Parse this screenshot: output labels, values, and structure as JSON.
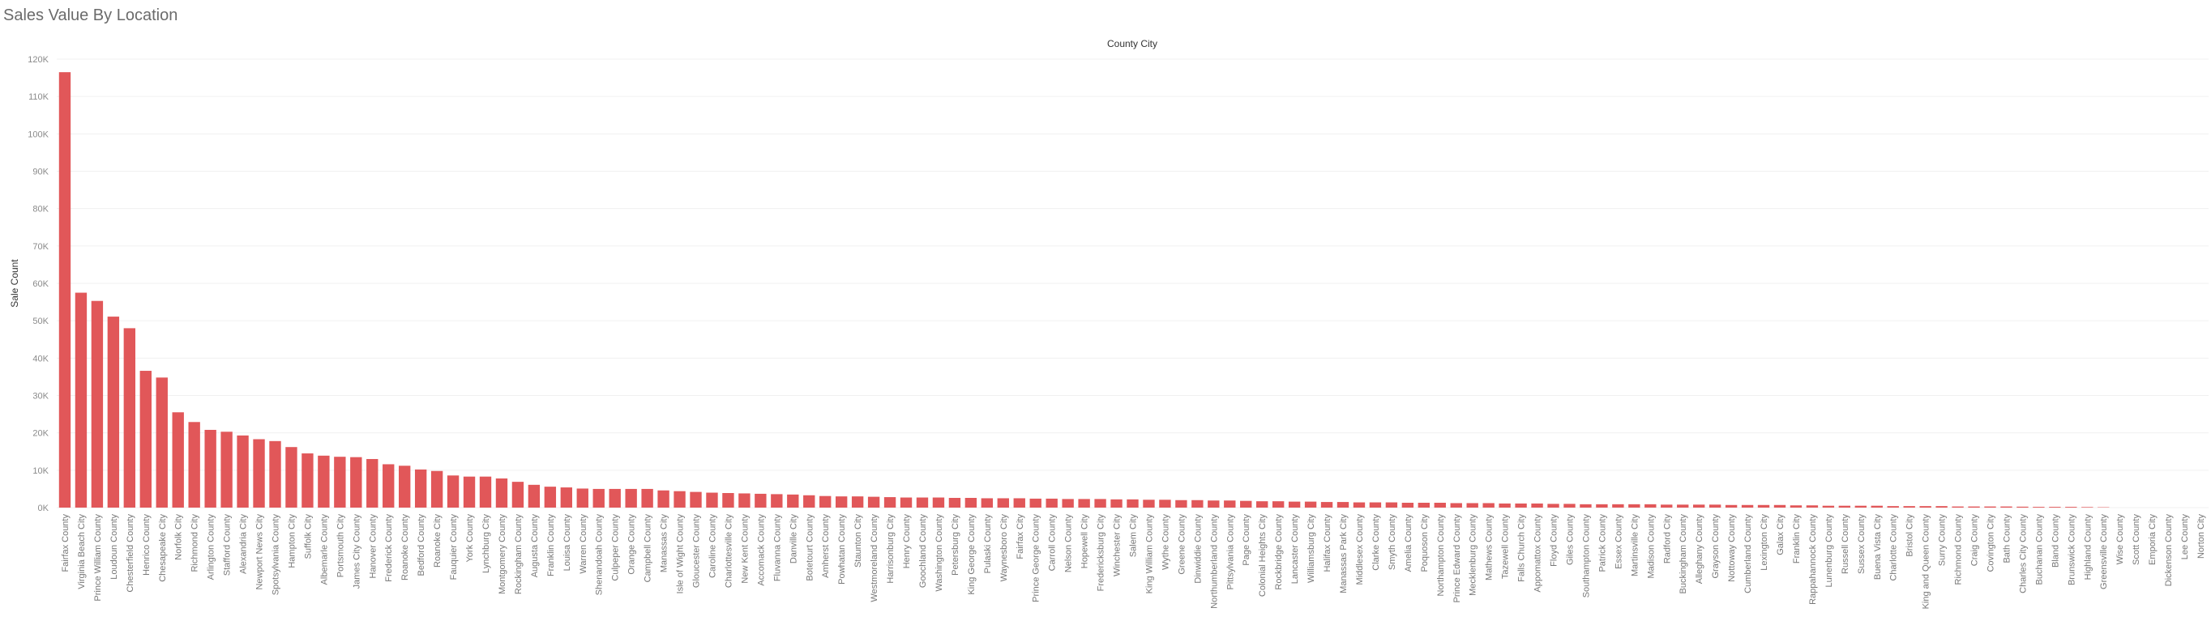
{
  "page": {
    "title": "Sales Value By Location"
  },
  "chart_data": {
    "type": "bar",
    "title": "",
    "header": "County City",
    "xlabel": "",
    "ylabel": "Sale Count",
    "ylim": [
      0,
      120000
    ],
    "yticks": [
      0,
      10000,
      20000,
      30000,
      40000,
      50000,
      60000,
      70000,
      80000,
      90000,
      100000,
      110000,
      120000
    ],
    "ytick_labels": [
      "0K",
      "10K",
      "20K",
      "30K",
      "40K",
      "50K",
      "60K",
      "70K",
      "80K",
      "90K",
      "100K",
      "110K",
      "120K"
    ],
    "grid": true,
    "color": "#e15759",
    "categories": [
      "Fairfax County",
      "Virginia Beach City",
      "Prince William County",
      "Loudoun County",
      "Chesterfield County",
      "Henrico County",
      "Chesapeake City",
      "Norfolk City",
      "Richmond City",
      "Arlington County",
      "Stafford County",
      "Alexandria City",
      "Newport News City",
      "Spotsylvania County",
      "Hampton City",
      "Suffolk City",
      "Albemarle County",
      "Portsmouth City",
      "James City County",
      "Hanover County",
      "Frederick County",
      "Roanoke County",
      "Bedford County",
      "Roanoke City",
      "Fauquier County",
      "York County",
      "Lynchburg City",
      "Montgomery County",
      "Rockingham County",
      "Augusta County",
      "Franklin County",
      "Louisa County",
      "Warren County",
      "Shenandoah County",
      "Culpeper County",
      "Orange County",
      "Campbell County",
      "Manassas City",
      "Isle of Wight County",
      "Gloucester County",
      "Caroline County",
      "Charlottesville City",
      "New Kent County",
      "Accomack County",
      "Fluvanna County",
      "Danville City",
      "Botetourt County",
      "Amherst County",
      "Powhatan County",
      "Staunton City",
      "Westmoreland County",
      "Harrisonburg City",
      "Henry County",
      "Goochland County",
      "Washington County",
      "Petersburg City",
      "King George County",
      "Pulaski County",
      "Waynesboro City",
      "Fairfax City",
      "Prince George County",
      "Carroll County",
      "Nelson County",
      "Hopewell City",
      "Fredericksburg City",
      "Winchester City",
      "Salem City",
      "King William County",
      "Wythe County",
      "Greene County",
      "Dinwiddie County",
      "Northumberland County",
      "Pittsylvania County",
      "Page County",
      "Colonial Heights City",
      "Rockbridge County",
      "Lancaster County",
      "Williamsburg City",
      "Halifax County",
      "Manassas Park City",
      "Middlesex County",
      "Clarke County",
      "Smyth County",
      "Amelia County",
      "Poquoson City",
      "Northampton County",
      "Prince Edward County",
      "Mecklenburg County",
      "Mathews County",
      "Tazewell County",
      "Falls Church City",
      "Appomattox County",
      "Floyd County",
      "Giles County",
      "Southampton County",
      "Patrick County",
      "Essex County",
      "Martinsville City",
      "Madison County",
      "Radford City",
      "Buckingham County",
      "Alleghany County",
      "Grayson County",
      "Nottoway County",
      "Cumberland County",
      "Lexington City",
      "Galax City",
      "Franklin City",
      "Rappahannock County",
      "Lunenburg County",
      "Russell County",
      "Sussex County",
      "Buena Vista City",
      "Charlotte County",
      "Bristol City",
      "King and Queen County",
      "Surry County",
      "Richmond County",
      "Craig County",
      "Covington City",
      "Bath County",
      "Charles City County",
      "Buchanan County",
      "Bland County",
      "Brunswick County",
      "Highland County",
      "Greensville County",
      "Wise County",
      "Scott County",
      "Emporia City",
      "Dickenson County",
      "Lee County",
      "Norton City"
    ],
    "values": [
      116500,
      57500,
      55300,
      51100,
      48000,
      36600,
      34800,
      25500,
      22900,
      20800,
      20300,
      19300,
      18300,
      17800,
      16200,
      14500,
      13900,
      13600,
      13500,
      13000,
      11600,
      11200,
      10200,
      9800,
      8600,
      8300,
      8300,
      7800,
      6900,
      6100,
      5600,
      5400,
      5100,
      5000,
      5000,
      5000,
      5000,
      4600,
      4400,
      4200,
      4000,
      3900,
      3800,
      3700,
      3600,
      3500,
      3300,
      3100,
      3000,
      3000,
      2900,
      2800,
      2700,
      2700,
      2700,
      2600,
      2600,
      2500,
      2500,
      2500,
      2400,
      2400,
      2300,
      2300,
      2300,
      2200,
      2200,
      2100,
      2100,
      2000,
      2000,
      1900,
      1900,
      1800,
      1700,
      1700,
      1600,
      1600,
      1500,
      1500,
      1400,
      1400,
      1400,
      1300,
      1300,
      1300,
      1200,
      1200,
      1200,
      1100,
      1100,
      1100,
      1000,
      1000,
      900,
      900,
      900,
      900,
      900,
      800,
      800,
      800,
      800,
      700,
      700,
      700,
      700,
      600,
      600,
      500,
      500,
      500,
      500,
      400,
      400,
      400,
      400,
      300,
      300,
      300,
      300,
      250,
      200,
      200,
      200,
      150,
      100,
      0,
      0,
      0,
      0,
      0,
      0
    ]
  }
}
